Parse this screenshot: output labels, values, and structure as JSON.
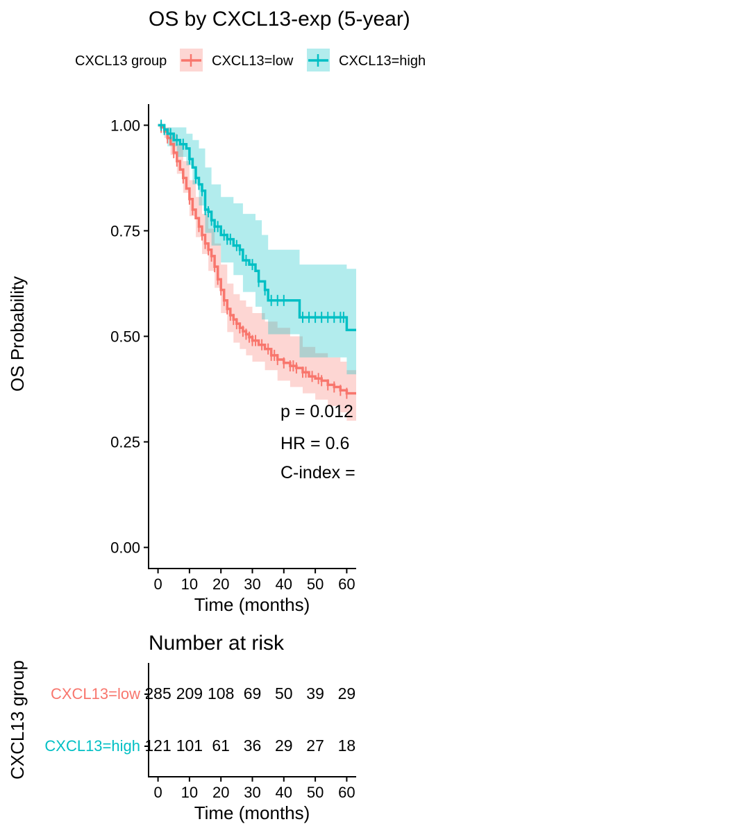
{
  "chart_data": [
    {
      "type": "line",
      "title": "OS by CXCL13-exp (5-year)",
      "xlabel": "Time (months)",
      "ylabel": "OS Probability",
      "xlim": [
        -3,
        63
      ],
      "ylim": [
        -0.05,
        1.05
      ],
      "x_ticks": [
        "0",
        "10",
        "20",
        "30",
        "40",
        "50",
        "60"
      ],
      "y_ticks": [
        "0.00",
        "0.25",
        "0.50",
        "0.75",
        "1.00"
      ],
      "legend": {
        "title": "CXCL13 group",
        "placement": "top",
        "entries": [
          "CXCL13=low",
          "CXCL13=high"
        ]
      },
      "annotations": [
        "p = 0.012",
        "HR = 0.6",
        "C-index ="
      ],
      "series": [
        {
          "name": "CXCL13=low",
          "color": "#F8766D",
          "points": [
            [
              0,
              1.0
            ],
            [
              1,
              0.995
            ],
            [
              2,
              0.985
            ],
            [
              3,
              0.97
            ],
            [
              4,
              0.955
            ],
            [
              5,
              0.935
            ],
            [
              6,
              0.915
            ],
            [
              7,
              0.895
            ],
            [
              8,
              0.875
            ],
            [
              9,
              0.85
            ],
            [
              10,
              0.825
            ],
            [
              11,
              0.8
            ],
            [
              12,
              0.78
            ],
            [
              13,
              0.76
            ],
            [
              14,
              0.74
            ],
            [
              15,
              0.72
            ],
            [
              16,
              0.705
            ],
            [
              17,
              0.69
            ],
            [
              18,
              0.665
            ],
            [
              19,
              0.635
            ],
            [
              20,
              0.61
            ],
            [
              21,
              0.585
            ],
            [
              22,
              0.565
            ],
            [
              23,
              0.55
            ],
            [
              24,
              0.54
            ],
            [
              25,
              0.53
            ],
            [
              26,
              0.52
            ],
            [
              27,
              0.512
            ],
            [
              28,
              0.505
            ],
            [
              29,
              0.498
            ],
            [
              30,
              0.49
            ],
            [
              32,
              0.48
            ],
            [
              34,
              0.47
            ],
            [
              36,
              0.455
            ],
            [
              38,
              0.445
            ],
            [
              40,
              0.437
            ],
            [
              42,
              0.43
            ],
            [
              44,
              0.425
            ],
            [
              46,
              0.415
            ],
            [
              48,
              0.405
            ],
            [
              50,
              0.4
            ],
            [
              52,
              0.395
            ],
            [
              54,
              0.385
            ],
            [
              56,
              0.38
            ],
            [
              58,
              0.372
            ],
            [
              60,
              0.365
            ],
            [
              63,
              0.365
            ]
          ],
          "ci_lower": [
            [
              0,
              1.0
            ],
            [
              2,
              0.97
            ],
            [
              4,
              0.93
            ],
            [
              6,
              0.885
            ],
            [
              8,
              0.84
            ],
            [
              10,
              0.785
            ],
            [
              12,
              0.735
            ],
            [
              14,
              0.695
            ],
            [
              16,
              0.655
            ],
            [
              18,
              0.615
            ],
            [
              20,
              0.555
            ],
            [
              22,
              0.51
            ],
            [
              24,
              0.485
            ],
            [
              26,
              0.47
            ],
            [
              28,
              0.455
            ],
            [
              30,
              0.44
            ],
            [
              34,
              0.42
            ],
            [
              38,
              0.395
            ],
            [
              42,
              0.38
            ],
            [
              46,
              0.365
            ],
            [
              50,
              0.35
            ],
            [
              54,
              0.335
            ],
            [
              58,
              0.32
            ],
            [
              60,
              0.3
            ],
            [
              63,
              0.3
            ]
          ],
          "ci_upper": [
            [
              0,
              1.0
            ],
            [
              2,
              0.995
            ],
            [
              4,
              0.98
            ],
            [
              6,
              0.955
            ],
            [
              8,
              0.915
            ],
            [
              10,
              0.87
            ],
            [
              12,
              0.83
            ],
            [
              14,
              0.79
            ],
            [
              16,
              0.755
            ],
            [
              18,
              0.72
            ],
            [
              20,
              0.67
            ],
            [
              22,
              0.625
            ],
            [
              24,
              0.6
            ],
            [
              26,
              0.585
            ],
            [
              28,
              0.57
            ],
            [
              30,
              0.555
            ],
            [
              34,
              0.535
            ],
            [
              38,
              0.52
            ],
            [
              42,
              0.5
            ],
            [
              46,
              0.475
            ],
            [
              50,
              0.46
            ],
            [
              54,
              0.45
            ],
            [
              58,
              0.44
            ],
            [
              60,
              0.42
            ],
            [
              63,
              0.42
            ]
          ],
          "censor_x": [
            1,
            3,
            5,
            6,
            8,
            10,
            11,
            13,
            14,
            15,
            16,
            17,
            18,
            19,
            20,
            21,
            22,
            23,
            24,
            25,
            26,
            27,
            28,
            29,
            30,
            31,
            33,
            35,
            36,
            37,
            38,
            40,
            42,
            43,
            44,
            46,
            47,
            49,
            51,
            52,
            54,
            56,
            58,
            60
          ]
        },
        {
          "name": "CXCL13=high",
          "color": "#00BFC4",
          "points": [
            [
              0,
              1.0
            ],
            [
              2,
              0.99
            ],
            [
              3,
              0.98
            ],
            [
              5,
              0.965
            ],
            [
              7,
              0.955
            ],
            [
              9,
              0.945
            ],
            [
              10,
              0.92
            ],
            [
              11,
              0.9
            ],
            [
              12,
              0.875
            ],
            [
              13,
              0.86
            ],
            [
              14,
              0.845
            ],
            [
              15,
              0.8
            ],
            [
              16,
              0.795
            ],
            [
              17,
              0.775
            ],
            [
              18,
              0.76
            ],
            [
              20,
              0.74
            ],
            [
              22,
              0.73
            ],
            [
              24,
              0.715
            ],
            [
              26,
              0.705
            ],
            [
              27,
              0.68
            ],
            [
              29,
              0.67
            ],
            [
              31,
              0.655
            ],
            [
              32,
              0.63
            ],
            [
              34,
              0.61
            ],
            [
              35,
              0.585
            ],
            [
              45,
              0.585
            ],
            [
              45,
              0.545
            ],
            [
              60,
              0.545
            ],
            [
              60,
              0.515
            ],
            [
              63,
              0.515
            ]
          ],
          "ci_lower": [
            [
              0,
              1.0
            ],
            [
              3,
              0.95
            ],
            [
              6,
              0.925
            ],
            [
              9,
              0.905
            ],
            [
              11,
              0.86
            ],
            [
              13,
              0.81
            ],
            [
              15,
              0.745
            ],
            [
              17,
              0.715
            ],
            [
              20,
              0.675
            ],
            [
              24,
              0.645
            ],
            [
              27,
              0.605
            ],
            [
              31,
              0.57
            ],
            [
              33,
              0.54
            ],
            [
              35,
              0.505
            ],
            [
              45,
              0.5
            ],
            [
              45,
              0.45
            ],
            [
              60,
              0.45
            ],
            [
              60,
              0.41
            ],
            [
              63,
              0.41
            ]
          ],
          "ci_upper": [
            [
              0,
              1.0
            ],
            [
              3,
              0.995
            ],
            [
              6,
              0.995
            ],
            [
              9,
              0.98
            ],
            [
              11,
              0.965
            ],
            [
              13,
              0.945
            ],
            [
              15,
              0.9
            ],
            [
              17,
              0.86
            ],
            [
              20,
              0.83
            ],
            [
              24,
              0.815
            ],
            [
              27,
              0.79
            ],
            [
              31,
              0.775
            ],
            [
              33,
              0.74
            ],
            [
              35,
              0.705
            ],
            [
              45,
              0.7
            ],
            [
              45,
              0.67
            ],
            [
              60,
              0.67
            ],
            [
              60,
              0.66
            ],
            [
              63,
              0.66
            ]
          ],
          "censor_x": [
            1,
            2,
            4,
            6,
            8,
            10,
            12,
            13,
            14,
            15,
            16,
            17,
            18,
            19,
            21,
            22,
            23,
            25,
            26,
            28,
            30,
            32,
            34,
            36,
            38,
            40,
            46,
            48,
            50,
            52,
            54,
            56,
            58,
            59
          ]
        }
      ]
    },
    {
      "type": "table",
      "title": "Number at risk",
      "xlabel": "Time (months)",
      "ylabel": "CXCL13 group",
      "x_ticks": [
        "0",
        "10",
        "20",
        "30",
        "40",
        "50",
        "60"
      ],
      "rows": [
        {
          "label": "CXCL13=low",
          "color": "#F8766D",
          "values": [
            "285",
            "209",
            "108",
            "69",
            "50",
            "39",
            "29"
          ]
        },
        {
          "label": "CXCL13=high",
          "color": "#00BFC4",
          "values": [
            "121",
            "101",
            "61",
            "36",
            "29",
            "27",
            "18"
          ]
        }
      ]
    }
  ]
}
